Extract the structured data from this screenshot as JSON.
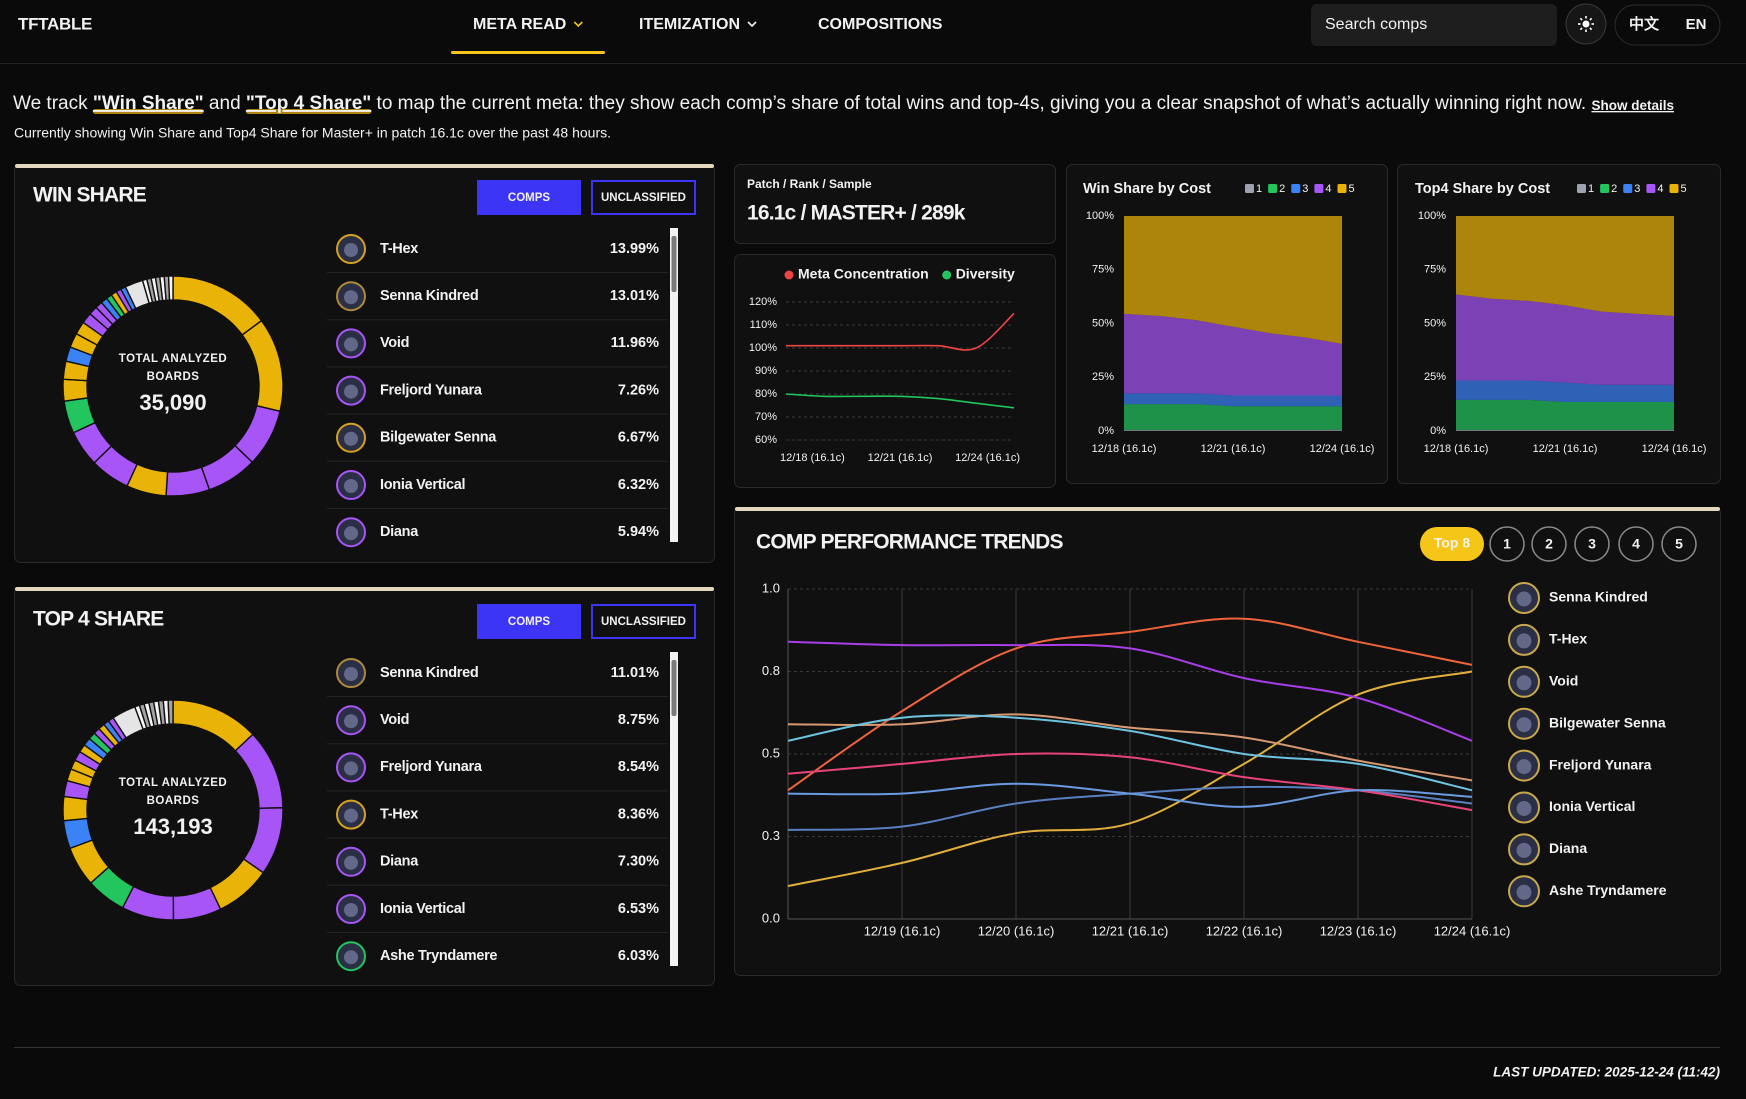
{
  "nav": {
    "logo": "TFTABLE",
    "items": [
      "META READ",
      "ITEMIZATION",
      "COMPOSITIONS"
    ],
    "search_placeholder": "Search comps",
    "languages": [
      "中文",
      "EN"
    ]
  },
  "intro": {
    "parts": [
      "We track ",
      "\"Win Share\"",
      " and ",
      "\"Top 4 Share\"",
      " to map the current meta: they show each comp’s share of total wins and top-4s, giving you a clear snapshot of what’s actually winning right now. "
    ],
    "show_details": "Show details",
    "subline": "Currently showing Win Share and Top4 Share for Master+ in patch 16.1c over the past 48 hours."
  },
  "win_share": {
    "title": "WIN SHARE",
    "buttons": [
      "COMPS",
      "UNCLASSIFIED"
    ],
    "center_label": [
      "TOTAL ANALYZED",
      "BOARDS"
    ],
    "total": "35,090",
    "comps": [
      {
        "name": "T-Hex",
        "share": "13.99%",
        "color": "#d6a21c"
      },
      {
        "name": "Senna Kindred",
        "share": "13.01%",
        "color": "#b08a3a"
      },
      {
        "name": "Void",
        "share": "11.96%",
        "color": "#a855f7"
      },
      {
        "name": "Freljord Yunara",
        "share": "7.26%",
        "color": "#a855f7"
      },
      {
        "name": "Bilgewater Senna",
        "share": "6.67%",
        "color": "#d6a21c"
      },
      {
        "name": "Ionia Vertical",
        "share": "6.32%",
        "color": "#a855f7"
      },
      {
        "name": "Diana",
        "share": "5.94%",
        "color": "#a855f7"
      }
    ],
    "donut": {
      "type": "pie",
      "values": [
        14,
        13,
        8,
        7,
        6,
        5.5,
        5.5,
        5,
        4.5,
        3,
        2.5,
        2,
        2,
        1.8,
        1.5,
        1.2,
        1,
        0.9,
        0.8,
        0.8,
        0.7,
        0.7,
        2.5,
        0.6,
        0.6,
        0.6,
        0.6,
        0.6,
        0.6,
        0.6
      ],
      "colors": [
        "#eab308",
        "#eab308",
        "#a855f7",
        "#a855f7",
        "#a855f7",
        "#eab308",
        "#a855f7",
        "#a855f7",
        "#22c55e",
        "#eab308",
        "#eab308",
        "#3b82f6",
        "#eab308",
        "#eab308",
        "#a855f7",
        "#a855f7",
        "#a855f7",
        "#3b82f6",
        "#22c55e",
        "#eab308",
        "#a855f7",
        "#3b82f6",
        "#e5e5e5",
        "#f5f5f5",
        "#a3a3a3",
        "#f5f5f5",
        "#a3a3a3",
        "#f5f5f5",
        "#a3a3a3",
        "#f5f5f5"
      ]
    }
  },
  "top4_share": {
    "title": "TOP 4 SHARE",
    "buttons": [
      "COMPS",
      "UNCLASSIFIED"
    ],
    "center_label": [
      "TOTAL ANALYZED",
      "BOARDS"
    ],
    "total": "143,193",
    "comps": [
      {
        "name": "Senna Kindred",
        "share": "11.01%",
        "color": "#b08a3a"
      },
      {
        "name": "Void",
        "share": "8.75%",
        "color": "#a855f7"
      },
      {
        "name": "Freljord Yunara",
        "share": "8.54%",
        "color": "#a855f7"
      },
      {
        "name": "T-Hex",
        "share": "8.36%",
        "color": "#d6a21c"
      },
      {
        "name": "Diana",
        "share": "7.30%",
        "color": "#a855f7"
      },
      {
        "name": "Ionia Vertical",
        "share": "6.53%",
        "color": "#a855f7"
      },
      {
        "name": "Ashe Tryndamere",
        "share": "6.03%",
        "color": "#22c55e"
      }
    ],
    "donut": {
      "type": "pie",
      "values": [
        11,
        10,
        8.5,
        7,
        6,
        6.5,
        5,
        5,
        3.5,
        3,
        2,
        1.5,
        1.2,
        1.2,
        1,
        1,
        0.9,
        0.8,
        0.8,
        0.7,
        0.7,
        3,
        0.6,
        0.6,
        0.6,
        0.6,
        0.6,
        0.6,
        0.6,
        0.6
      ],
      "colors": [
        "#eab308",
        "#a855f7",
        "#a855f7",
        "#eab308",
        "#a855f7",
        "#a855f7",
        "#22c55e",
        "#eab308",
        "#3b82f6",
        "#eab308",
        "#a855f7",
        "#eab308",
        "#eab308",
        "#a855f7",
        "#eab308",
        "#3b82f6",
        "#22c55e",
        "#a855f7",
        "#eab308",
        "#3b82f6",
        "#a855f7",
        "#e5e5e5",
        "#f5f5f5",
        "#a3a3a3",
        "#f5f5f5",
        "#a3a3a3",
        "#f5f5f5",
        "#a3a3a3",
        "#f5f5f5",
        "#a3a3a3"
      ]
    }
  },
  "patch_panel": {
    "label": "Patch / Rank / Sample",
    "value": "16.1c / MASTER+ / 289k"
  },
  "meta_chart": {
    "type": "line",
    "categories": [
      "12/18 (16.1c)",
      null,
      null,
      "12/21 (16.1c)",
      null,
      null,
      "12/24 (16.1c)"
    ],
    "series": [
      {
        "name": "Meta Concentration",
        "color": "#ef4444",
        "values": [
          101,
          101,
          101,
          101,
          101,
          100,
          115
        ]
      },
      {
        "name": "Diversity",
        "color": "#22c55e",
        "values": [
          80,
          79,
          79,
          79,
          78,
          76,
          74
        ]
      }
    ],
    "ylim": [
      60,
      120
    ],
    "yticks": [
      {
        "value": 60,
        "label": "60%"
      },
      {
        "value": 70,
        "label": "70%"
      },
      {
        "value": 80,
        "label": "80%"
      },
      {
        "value": 90,
        "label": "90%"
      },
      {
        "value": 100,
        "label": "100%"
      },
      {
        "value": 110,
        "label": "110%"
      },
      {
        "value": 120,
        "label": "120%"
      }
    ],
    "grid": true
  },
  "win_cost_chart": {
    "type": "area",
    "stacked": true,
    "title": "Win Share by Cost",
    "categories": [
      "12/18 (16.1c)",
      null,
      null,
      "12/21 (16.1c)",
      null,
      null,
      "12/24 (16.1c)"
    ],
    "series": [
      {
        "name": "1",
        "color": "#9ca3af",
        "values": [
          0.5,
          0.5,
          0.5,
          0.5,
          0.5,
          0.5,
          0.5
        ]
      },
      {
        "name": "2",
        "color": "#22c55e",
        "values": [
          12,
          12,
          12,
          11,
          11,
          11,
          11
        ]
      },
      {
        "name": "3",
        "color": "#3b82f6",
        "values": [
          5,
          5,
          5,
          5,
          5,
          5,
          5
        ]
      },
      {
        "name": "4",
        "color": "#a855f7",
        "values": [
          37,
          36,
          34,
          32,
          29,
          27,
          24
        ]
      },
      {
        "name": "5",
        "color": "#eab308",
        "values": [
          45.5,
          46.5,
          48.5,
          51.5,
          54.5,
          56.5,
          59.5
        ]
      }
    ],
    "ylim": [
      0,
      100
    ],
    "yticks": [
      {
        "value": 0,
        "label": "0%"
      },
      {
        "value": 25,
        "label": "25%"
      },
      {
        "value": 50,
        "label": "50%"
      },
      {
        "value": 75,
        "label": "75%"
      },
      {
        "value": 100,
        "label": "100%"
      }
    ]
  },
  "top4_cost_chart": {
    "type": "area",
    "stacked": true,
    "title": "Top4 Share by Cost",
    "categories": [
      "12/18 (16.1c)",
      null,
      null,
      "12/21 (16.1c)",
      null,
      null,
      "12/24 (16.1c)"
    ],
    "series": [
      {
        "name": "1",
        "color": "#9ca3af",
        "values": [
          0.5,
          0.5,
          0.5,
          0.5,
          0.5,
          0.5,
          0.5
        ]
      },
      {
        "name": "2",
        "color": "#22c55e",
        "values": [
          14,
          14,
          14,
          13,
          13,
          13,
          13
        ]
      },
      {
        "name": "3",
        "color": "#3b82f6",
        "values": [
          9,
          9,
          9,
          9,
          8,
          8,
          8
        ]
      },
      {
        "name": "4",
        "color": "#a855f7",
        "values": [
          40,
          38,
          37,
          36,
          34,
          33,
          32
        ]
      },
      {
        "name": "5",
        "color": "#eab308",
        "values": [
          36.5,
          38.5,
          39.5,
          41.5,
          44.5,
          45.5,
          46.5
        ]
      }
    ],
    "ylim": [
      0,
      100
    ],
    "yticks": [
      {
        "value": 0,
        "label": "0%"
      },
      {
        "value": 25,
        "label": "25%"
      },
      {
        "value": 50,
        "label": "50%"
      },
      {
        "value": 75,
        "label": "75%"
      },
      {
        "value": 100,
        "label": "100%"
      }
    ]
  },
  "trends_chart": {
    "type": "line",
    "title": "COMP PERFORMANCE TRENDS",
    "tabs": [
      "Top 8",
      "1",
      "2",
      "3",
      "4",
      "5"
    ],
    "categories": [
      null,
      "12/19 (16.1c)",
      "12/20 (16.1c)",
      "12/21 (16.1c)",
      "12/22 (16.1c)",
      "12/23 (16.1c)",
      "12/24 (16.1c)"
    ],
    "series": [
      {
        "name": "Senna Kindred",
        "color": "#f0643c",
        "values": [
          0.39,
          0.63,
          0.82,
          0.87,
          0.91,
          0.84,
          0.77
        ]
      },
      {
        "name": "T-Hex",
        "color": "#e2b03a",
        "values": [
          0.1,
          0.17,
          0.26,
          0.29,
          0.47,
          0.68,
          0.75
        ]
      },
      {
        "name": "Void",
        "color": "#a83ee8",
        "values": [
          0.84,
          0.83,
          0.83,
          0.82,
          0.73,
          0.67,
          0.54
        ]
      },
      {
        "name": "Bilgewater Senna",
        "color": "#d79a72",
        "values": [
          0.59,
          0.59,
          0.62,
          0.58,
          0.55,
          0.48,
          0.42
        ]
      },
      {
        "name": "Freljord Yunara",
        "color": "#6ec4e0",
        "values": [
          0.54,
          0.61,
          0.61,
          0.57,
          0.5,
          0.47,
          0.39
        ]
      },
      {
        "name": "Ionia Vertical",
        "color": "#5a7fc0",
        "values": [
          0.27,
          0.28,
          0.35,
          0.38,
          0.4,
          0.39,
          0.35
        ]
      },
      {
        "name": "Diana",
        "color": "#e8447a",
        "values": [
          0.44,
          0.47,
          0.5,
          0.49,
          0.43,
          0.39,
          0.33
        ]
      },
      {
        "name": "Ashe Tryndamere",
        "color": "#6a9ae0",
        "values": [
          0.38,
          0.38,
          0.41,
          0.38,
          0.34,
          0.39,
          0.37
        ]
      }
    ],
    "ylim": [
      0,
      1
    ],
    "yticks": [
      {
        "value": 0,
        "label": "0.0"
      },
      {
        "value": 0.25,
        "label": "0.3"
      },
      {
        "value": 0.5,
        "label": "0.5"
      },
      {
        "value": 0.75,
        "label": "0.8"
      },
      {
        "value": 1,
        "label": "1.0"
      }
    ],
    "grid": true
  },
  "footer": {
    "last_updated": "LAST UPDATED: 2025-12-24 (11:42)"
  }
}
